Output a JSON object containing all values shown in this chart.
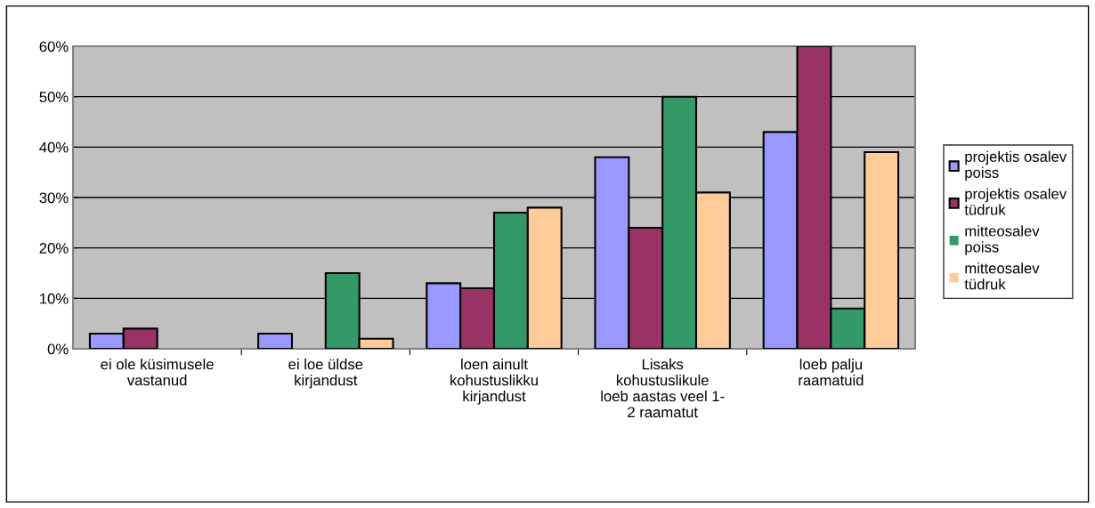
{
  "chart_data": {
    "type": "bar",
    "categories": [
      "ei ole küsimusele\nvastanud",
      "ei loe üldse\nkirjandust",
      "loen ainult\nkohustuslikku\nkirjandust",
      "Lisaks\nkohustuslikule\nloeb aastas veel 1-\n2 raamatut",
      "loeb palju\nraamatuid"
    ],
    "series": [
      {
        "name": "projektis osalev\npoiss",
        "color": "#9999ff",
        "values": [
          3,
          3,
          13,
          38,
          43
        ]
      },
      {
        "name": "projektis osalev\ntüdruk",
        "color": "#993366",
        "values": [
          4,
          0,
          12,
          24,
          60
        ]
      },
      {
        "name": "mitteosalev\npoiss",
        "color": "#339966",
        "values": [
          0,
          15,
          27,
          50,
          8
        ]
      },
      {
        "name": "mitteosalev\ntüdruk",
        "color": "#ffcc99",
        "values": [
          0,
          2,
          28,
          31,
          39
        ]
      }
    ],
    "ylim": [
      0,
      60
    ],
    "yticks": [
      {
        "value": 0,
        "label": "0%"
      },
      {
        "value": 10,
        "label": "10%"
      },
      {
        "value": 20,
        "label": "20%"
      },
      {
        "value": 30,
        "label": "30%"
      },
      {
        "value": 40,
        "label": "40%"
      },
      {
        "value": 50,
        "label": "50%"
      },
      {
        "value": 60,
        "label": "60%"
      }
    ],
    "grid": "y",
    "legend": "right"
  }
}
